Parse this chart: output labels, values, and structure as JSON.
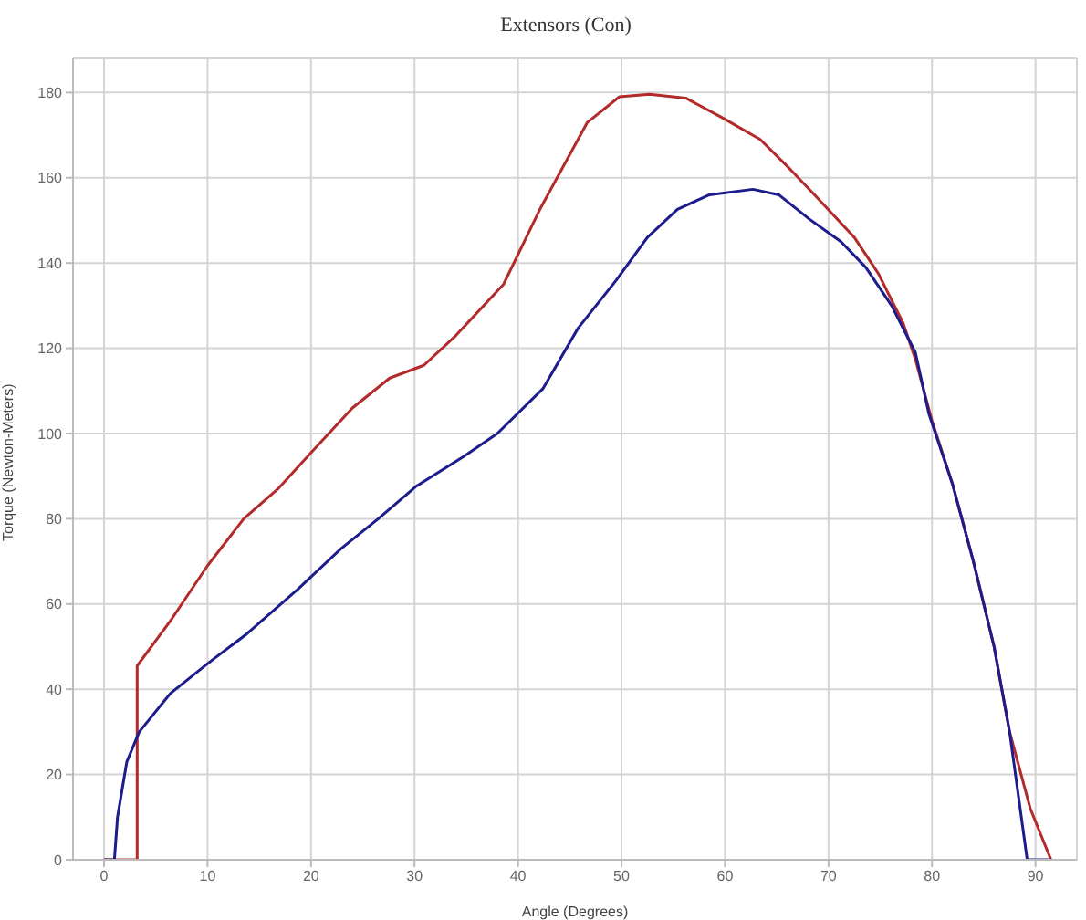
{
  "chart_data": {
    "type": "line",
    "title": "Extensors (Con)",
    "xlabel": "Angle (Degrees)",
    "ylabel": "Torque (Newton-Meters)",
    "xlim": [
      -3,
      94
    ],
    "ylim": [
      0,
      188
    ],
    "xticks": [
      0,
      10,
      20,
      30,
      40,
      50,
      60,
      70,
      80,
      90
    ],
    "yticks": [
      0,
      20,
      40,
      60,
      80,
      100,
      120,
      140,
      160,
      180
    ],
    "grid": true,
    "marker": "none",
    "line_style": "solid",
    "series": [
      {
        "color": "#b22a2a",
        "x": [
          0,
          3.2,
          3.2,
          6.4,
          10,
          13.5,
          16.8,
          20,
          24,
          27.6,
          30.9,
          34,
          38.6,
          42.2,
          46.7,
          49.8,
          52.7,
          56.2,
          59.8,
          63.4,
          66.3,
          68.8,
          72.5,
          74.8,
          77.2,
          78.4,
          80,
          82,
          84,
          86,
          87.5,
          89.5,
          91.5
        ],
        "values": [
          0,
          0,
          45.5,
          56,
          69,
          80,
          87,
          95.5,
          106,
          113,
          116,
          123,
          135,
          153,
          173,
          179,
          179.6,
          178.7,
          174,
          169,
          162,
          155.6,
          146,
          137.6,
          126,
          117.4,
          103,
          88,
          70,
          50,
          30,
          12,
          0
        ]
      },
      {
        "color": "#1c1c8c",
        "x": [
          0,
          1.0,
          1.3,
          2.2,
          3.4,
          6.4,
          10,
          13.8,
          18.7,
          22.9,
          26.5,
          30.1,
          35,
          38,
          42.4,
          45.8,
          49.5,
          52.5,
          55.4,
          58.5,
          62.7,
          65.2,
          68.1,
          71.2,
          73.6,
          76.1,
          78.4,
          79.7,
          82,
          84,
          86,
          87.5,
          89.2,
          91.5
        ],
        "values": [
          0,
          0,
          10,
          23,
          30,
          39,
          46,
          53,
          63.4,
          73,
          80,
          87.5,
          95,
          100,
          110.5,
          124.7,
          136,
          146,
          152.6,
          156,
          157.3,
          156,
          150.4,
          145,
          139,
          130,
          119,
          104.6,
          88,
          70,
          50,
          30,
          0,
          0
        ]
      }
    ]
  }
}
